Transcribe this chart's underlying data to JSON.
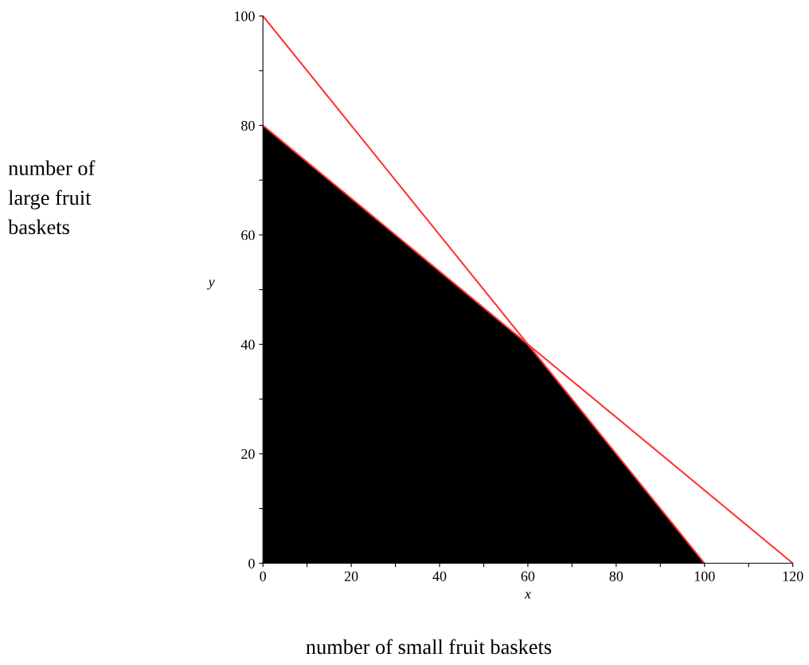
{
  "chart_data": {
    "type": "area",
    "xlabel": "x",
    "ylabel": "y",
    "series": [
      {
        "color": "#000000",
        "x": [
          0,
          60,
          100
        ],
        "values": [
          80,
          40,
          0
        ]
      },
      {
        "type": "line",
        "color": "#ff3333",
        "x": [
          0,
          100
        ],
        "values": [
          100,
          0
        ]
      },
      {
        "type": "line",
        "color": "#ff3333",
        "x": [
          0,
          120
        ],
        "values": [
          80,
          0
        ]
      }
    ],
    "xlim": [
      0,
      120
    ],
    "ylim": [
      0,
      100
    ],
    "xticks": [
      0,
      {
        "value": 10,
        "label": null
      },
      20,
      {
        "value": 30,
        "label": null
      },
      40,
      {
        "value": 50,
        "label": null
      },
      60,
      {
        "value": 70,
        "label": null
      },
      80,
      {
        "value": 90,
        "label": null
      },
      100,
      {
        "value": 110,
        "label": null
      },
      120
    ],
    "yticks": [
      0,
      {
        "value": 10,
        "label": null
      },
      20,
      {
        "value": 30,
        "label": null
      },
      40,
      {
        "value": 50,
        "label": null
      },
      60,
      {
        "value": 70,
        "label": null
      },
      80,
      {
        "value": 90,
        "label": null
      },
      100
    ],
    "annotations": [
      "number of\nlarge fruit\nbaskets",
      "number of small fruit baskets"
    ],
    "grid": false,
    "legend": false,
    "marker": "none",
    "line_style": "solid"
  }
}
